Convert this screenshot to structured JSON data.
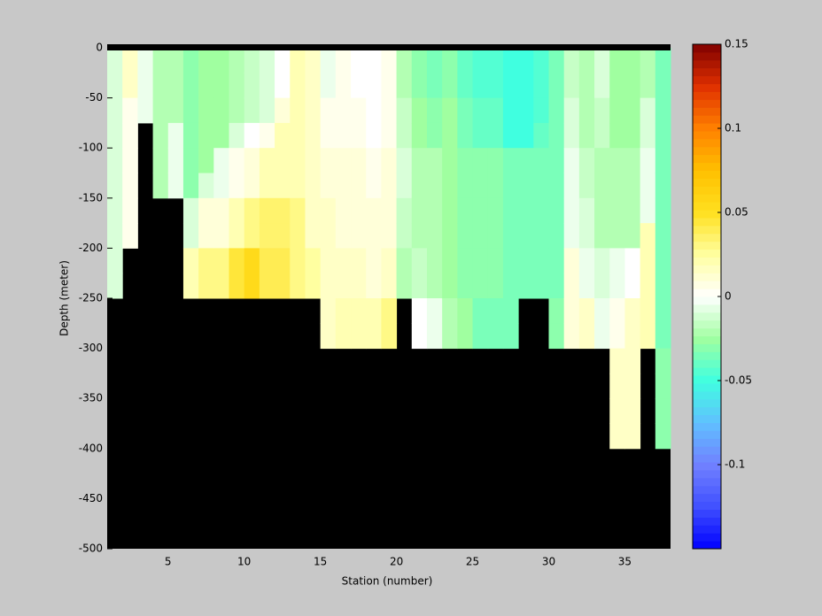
{
  "chart_data": {
    "type": "heatmap",
    "x_label": "Station (number)",
    "y_label": "Depth (meter)",
    "x": [
      1,
      2,
      3,
      4,
      5,
      6,
      7,
      8,
      9,
      10,
      11,
      12,
      13,
      14,
      15,
      16,
      17,
      18,
      19,
      20,
      21,
      22,
      23,
      24,
      25,
      26,
      27,
      28,
      29,
      30,
      31,
      32,
      33,
      34,
      35,
      36,
      37,
      38
    ],
    "y": [
      0,
      -25,
      -50,
      -75,
      -100,
      -125,
      -150,
      -175,
      -200,
      -225,
      -250,
      -275,
      -300,
      -325,
      -350,
      -375,
      -400,
      -425,
      -450,
      -475,
      -500
    ],
    "z": [
      [
        -0.01,
        -0.01,
        -0.01,
        -0.01,
        -0.01,
        -0.01,
        -0.01,
        -0.01,
        -0.01,
        -0.01,
        null,
        null,
        null,
        null,
        null,
        null,
        null,
        null,
        null,
        null
      ],
      [
        0.015,
        0.015,
        0.005,
        0.005,
        0.005,
        0.005,
        0.005,
        0.005,
        null,
        null,
        null,
        null,
        null,
        null,
        null,
        null,
        null,
        null,
        null,
        null
      ],
      [
        -0.005,
        -0.005,
        -0.005,
        null,
        null,
        null,
        null,
        null,
        null,
        null,
        null,
        null,
        null,
        null,
        null,
        null,
        null,
        null,
        null,
        null
      ],
      [
        -0.02,
        -0.02,
        -0.02,
        -0.02,
        -0.02,
        -0.02,
        null,
        null,
        null,
        null,
        null,
        null,
        null,
        null,
        null,
        null,
        null,
        null,
        null,
        null
      ],
      [
        -0.02,
        -0.02,
        -0.02,
        -0.005,
        -0.005,
        -0.005,
        null,
        null,
        null,
        null,
        null,
        null,
        null,
        null,
        null,
        null,
        null,
        null,
        null,
        null
      ],
      [
        -0.03,
        -0.03,
        -0.03,
        -0.03,
        -0.03,
        -0.03,
        -0.01,
        -0.01,
        0.02,
        0.02,
        null,
        null,
        null,
        null,
        null,
        null,
        null,
        null,
        null,
        null
      ],
      [
        -0.025,
        -0.025,
        -0.025,
        -0.025,
        -0.025,
        -0.01,
        0.01,
        0.01,
        0.03,
        0.03,
        null,
        null,
        null,
        null,
        null,
        null,
        null,
        null,
        null,
        null
      ],
      [
        -0.025,
        -0.025,
        -0.025,
        -0.025,
        -0.005,
        -0.005,
        0.01,
        0.01,
        0.03,
        0.03,
        null,
        null,
        null,
        null,
        null,
        null,
        null,
        null,
        null,
        null
      ],
      [
        -0.02,
        -0.02,
        -0.02,
        -0.01,
        0.005,
        0.005,
        0.02,
        0.02,
        0.045,
        0.045,
        null,
        null,
        null,
        null,
        null,
        null,
        null,
        null,
        null,
        null
      ],
      [
        -0.015,
        -0.015,
        -0.015,
        0,
        0.01,
        0.01,
        0.03,
        0.03,
        0.055,
        0.055,
        null,
        null,
        null,
        null,
        null,
        null,
        null,
        null,
        null,
        null
      ],
      [
        -0.01,
        -0.01,
        -0.01,
        0.005,
        0.02,
        0.02,
        0.035,
        0.035,
        0.04,
        0.04,
        null,
        null,
        null,
        null,
        null,
        null,
        null,
        null,
        null,
        null
      ],
      [
        0,
        0,
        0.01,
        0.02,
        0.02,
        0.02,
        0.035,
        0.035,
        0.04,
        0.04,
        null,
        null,
        null,
        null,
        null,
        null,
        null,
        null,
        null,
        null
      ],
      [
        0.02,
        0.02,
        0.02,
        0.02,
        0.02,
        0.02,
        0.03,
        0.03,
        0.03,
        0.03,
        null,
        null,
        null,
        null,
        null,
        null,
        null,
        null,
        null,
        null
      ],
      [
        0.015,
        0.015,
        0.015,
        0.015,
        0.015,
        0.015,
        0.015,
        0.015,
        0.025,
        0.025,
        null,
        null,
        null,
        null,
        null,
        null,
        null,
        null,
        null,
        null
      ],
      [
        -0.005,
        -0.005,
        0.005,
        0.005,
        0.01,
        0.01,
        0.015,
        0.015,
        0.015,
        0.015,
        0.015,
        0.015,
        null,
        null,
        null,
        null,
        null,
        null,
        null,
        null
      ],
      [
        0.005,
        0.005,
        0.005,
        0.005,
        0.01,
        0.01,
        0.01,
        0.01,
        0.015,
        0.015,
        0.02,
        0.02,
        null,
        null,
        null,
        null,
        null,
        null,
        null,
        null
      ],
      [
        0,
        0,
        0.005,
        0.005,
        0.01,
        0.01,
        0.01,
        0.01,
        0.015,
        0.015,
        0.02,
        0.02,
        null,
        null,
        null,
        null,
        null,
        null,
        null,
        null
      ],
      [
        0,
        0,
        0,
        0,
        0.005,
        0.005,
        0.01,
        0.01,
        0.01,
        0.01,
        0.02,
        0.02,
        null,
        null,
        null,
        null,
        null,
        null,
        null,
        null
      ],
      [
        0.005,
        0.005,
        0.005,
        0.005,
        0.01,
        0.01,
        0.01,
        0.01,
        0.015,
        0.015,
        0.03,
        0.03,
        null,
        null,
        null,
        null,
        null,
        null,
        null,
        null
      ],
      [
        -0.02,
        -0.02,
        -0.015,
        -0.015,
        -0.01,
        -0.01,
        -0.015,
        -0.015,
        -0.02,
        -0.02,
        null,
        null,
        null,
        null,
        null,
        null,
        null,
        null,
        null,
        null
      ],
      [
        -0.03,
        -0.03,
        -0.025,
        -0.025,
        -0.02,
        -0.02,
        -0.02,
        -0.02,
        -0.015,
        -0.015,
        0,
        0,
        null,
        null,
        null,
        null,
        null,
        null,
        null,
        null
      ],
      [
        -0.035,
        -0.035,
        -0.03,
        -0.03,
        -0.02,
        -0.02,
        -0.02,
        -0.02,
        -0.02,
        -0.02,
        -0.005,
        -0.005,
        null,
        null,
        null,
        null,
        null,
        null,
        null,
        null
      ],
      [
        -0.03,
        -0.03,
        -0.025,
        -0.025,
        -0.025,
        -0.025,
        -0.025,
        -0.025,
        -0.025,
        -0.025,
        -0.02,
        -0.02,
        null,
        null,
        null,
        null,
        null,
        null,
        null,
        null
      ],
      [
        -0.04,
        -0.04,
        -0.035,
        -0.035,
        -0.03,
        -0.03,
        -0.03,
        -0.03,
        -0.03,
        -0.03,
        -0.025,
        -0.025,
        null,
        null,
        null,
        null,
        null,
        null,
        null,
        null
      ],
      [
        -0.045,
        -0.045,
        -0.04,
        -0.04,
        -0.03,
        -0.03,
        -0.03,
        -0.03,
        -0.03,
        -0.03,
        -0.035,
        -0.035,
        null,
        null,
        null,
        null,
        null,
        null,
        null,
        null
      ],
      [
        -0.045,
        -0.045,
        -0.04,
        -0.04,
        -0.03,
        -0.03,
        -0.03,
        -0.03,
        -0.03,
        -0.03,
        -0.035,
        -0.035,
        null,
        null,
        null,
        null,
        null,
        null,
        null,
        null
      ],
      [
        -0.05,
        -0.05,
        -0.05,
        -0.05,
        -0.035,
        -0.035,
        -0.035,
        -0.035,
        -0.035,
        -0.035,
        -0.035,
        -0.035,
        null,
        null,
        null,
        null,
        null,
        null,
        null,
        null
      ],
      [
        -0.05,
        -0.05,
        -0.05,
        -0.05,
        -0.035,
        -0.035,
        -0.035,
        -0.035,
        -0.035,
        -0.035,
        null,
        null,
        null,
        null,
        null,
        null,
        null,
        null,
        null,
        null
      ],
      [
        -0.045,
        -0.045,
        -0.045,
        -0.04,
        -0.035,
        -0.035,
        -0.035,
        -0.035,
        -0.035,
        -0.035,
        null,
        null,
        null,
        null,
        null,
        null,
        null,
        null,
        null,
        null
      ],
      [
        -0.035,
        -0.035,
        -0.035,
        -0.035,
        -0.035,
        -0.035,
        -0.035,
        -0.035,
        -0.035,
        -0.035,
        -0.03,
        -0.03,
        null,
        null,
        null,
        null,
        null,
        null,
        null,
        null
      ],
      [
        -0.015,
        -0.015,
        -0.01,
        -0.01,
        -0.005,
        -0.005,
        -0.005,
        -0.005,
        0.01,
        0.01,
        0.01,
        0.01,
        null,
        null,
        null,
        null,
        null,
        null,
        null,
        null
      ],
      [
        -0.02,
        -0.02,
        -0.02,
        -0.02,
        -0.015,
        -0.015,
        -0.01,
        -0.01,
        -0.005,
        -0.005,
        0.015,
        0.015,
        null,
        null,
        null,
        null,
        null,
        null,
        null,
        null
      ],
      [
        -0.01,
        -0.01,
        -0.015,
        -0.015,
        -0.02,
        -0.02,
        -0.02,
        -0.02,
        -0.01,
        -0.01,
        -0.005,
        -0.005,
        null,
        null,
        null,
        null,
        null,
        null,
        null,
        null
      ],
      [
        -0.025,
        -0.025,
        -0.025,
        -0.025,
        -0.02,
        -0.02,
        -0.02,
        -0.02,
        -0.005,
        -0.005,
        0.005,
        0.005,
        0.015,
        0.015,
        0.015,
        0.015,
        null,
        null,
        null,
        null
      ],
      [
        -0.025,
        -0.025,
        -0.025,
        -0.025,
        -0.02,
        -0.02,
        -0.02,
        -0.02,
        0,
        0,
        0.015,
        0.015,
        0.015,
        0.015,
        0.015,
        0.015,
        null,
        null,
        null,
        null
      ],
      [
        -0.02,
        -0.02,
        -0.01,
        -0.01,
        -0.005,
        -0.005,
        -0.005,
        0.02,
        0.02,
        0.02,
        0.02,
        0.02,
        null,
        null,
        null,
        null,
        null,
        null,
        null,
        null
      ],
      [
        -0.035,
        -0.035,
        -0.035,
        -0.035,
        -0.035,
        -0.035,
        -0.035,
        -0.035,
        -0.035,
        -0.035,
        -0.035,
        -0.035,
        -0.03,
        -0.03,
        -0.03,
        -0.03,
        null,
        null,
        null,
        null
      ]
    ],
    "xlim": [
      1,
      38
    ],
    "xticks": [
      5,
      10,
      15,
      20,
      25,
      30,
      35
    ],
    "ylim": [
      -500,
      0
    ],
    "yticks": [
      -500,
      -450,
      -400,
      -350,
      -300,
      -250,
      -200,
      -150,
      -100,
      -50,
      0
    ],
    "clim": [
      -0.15,
      0.15
    ],
    "cticks": [
      -0.1,
      -0.05,
      0,
      0.05,
      0.1,
      0.15
    ],
    "missing_color": "#000000",
    "colormap": [
      "#0000ff",
      "#4050ff",
      "#7080ff",
      "#60c0ff",
      "#40ffe0",
      "#a0ffa0",
      "#ffffff",
      "#ffffa0",
      "#ffe020",
      "#ffc000",
      "#ff8000",
      "#e03000",
      "#800000"
    ]
  }
}
